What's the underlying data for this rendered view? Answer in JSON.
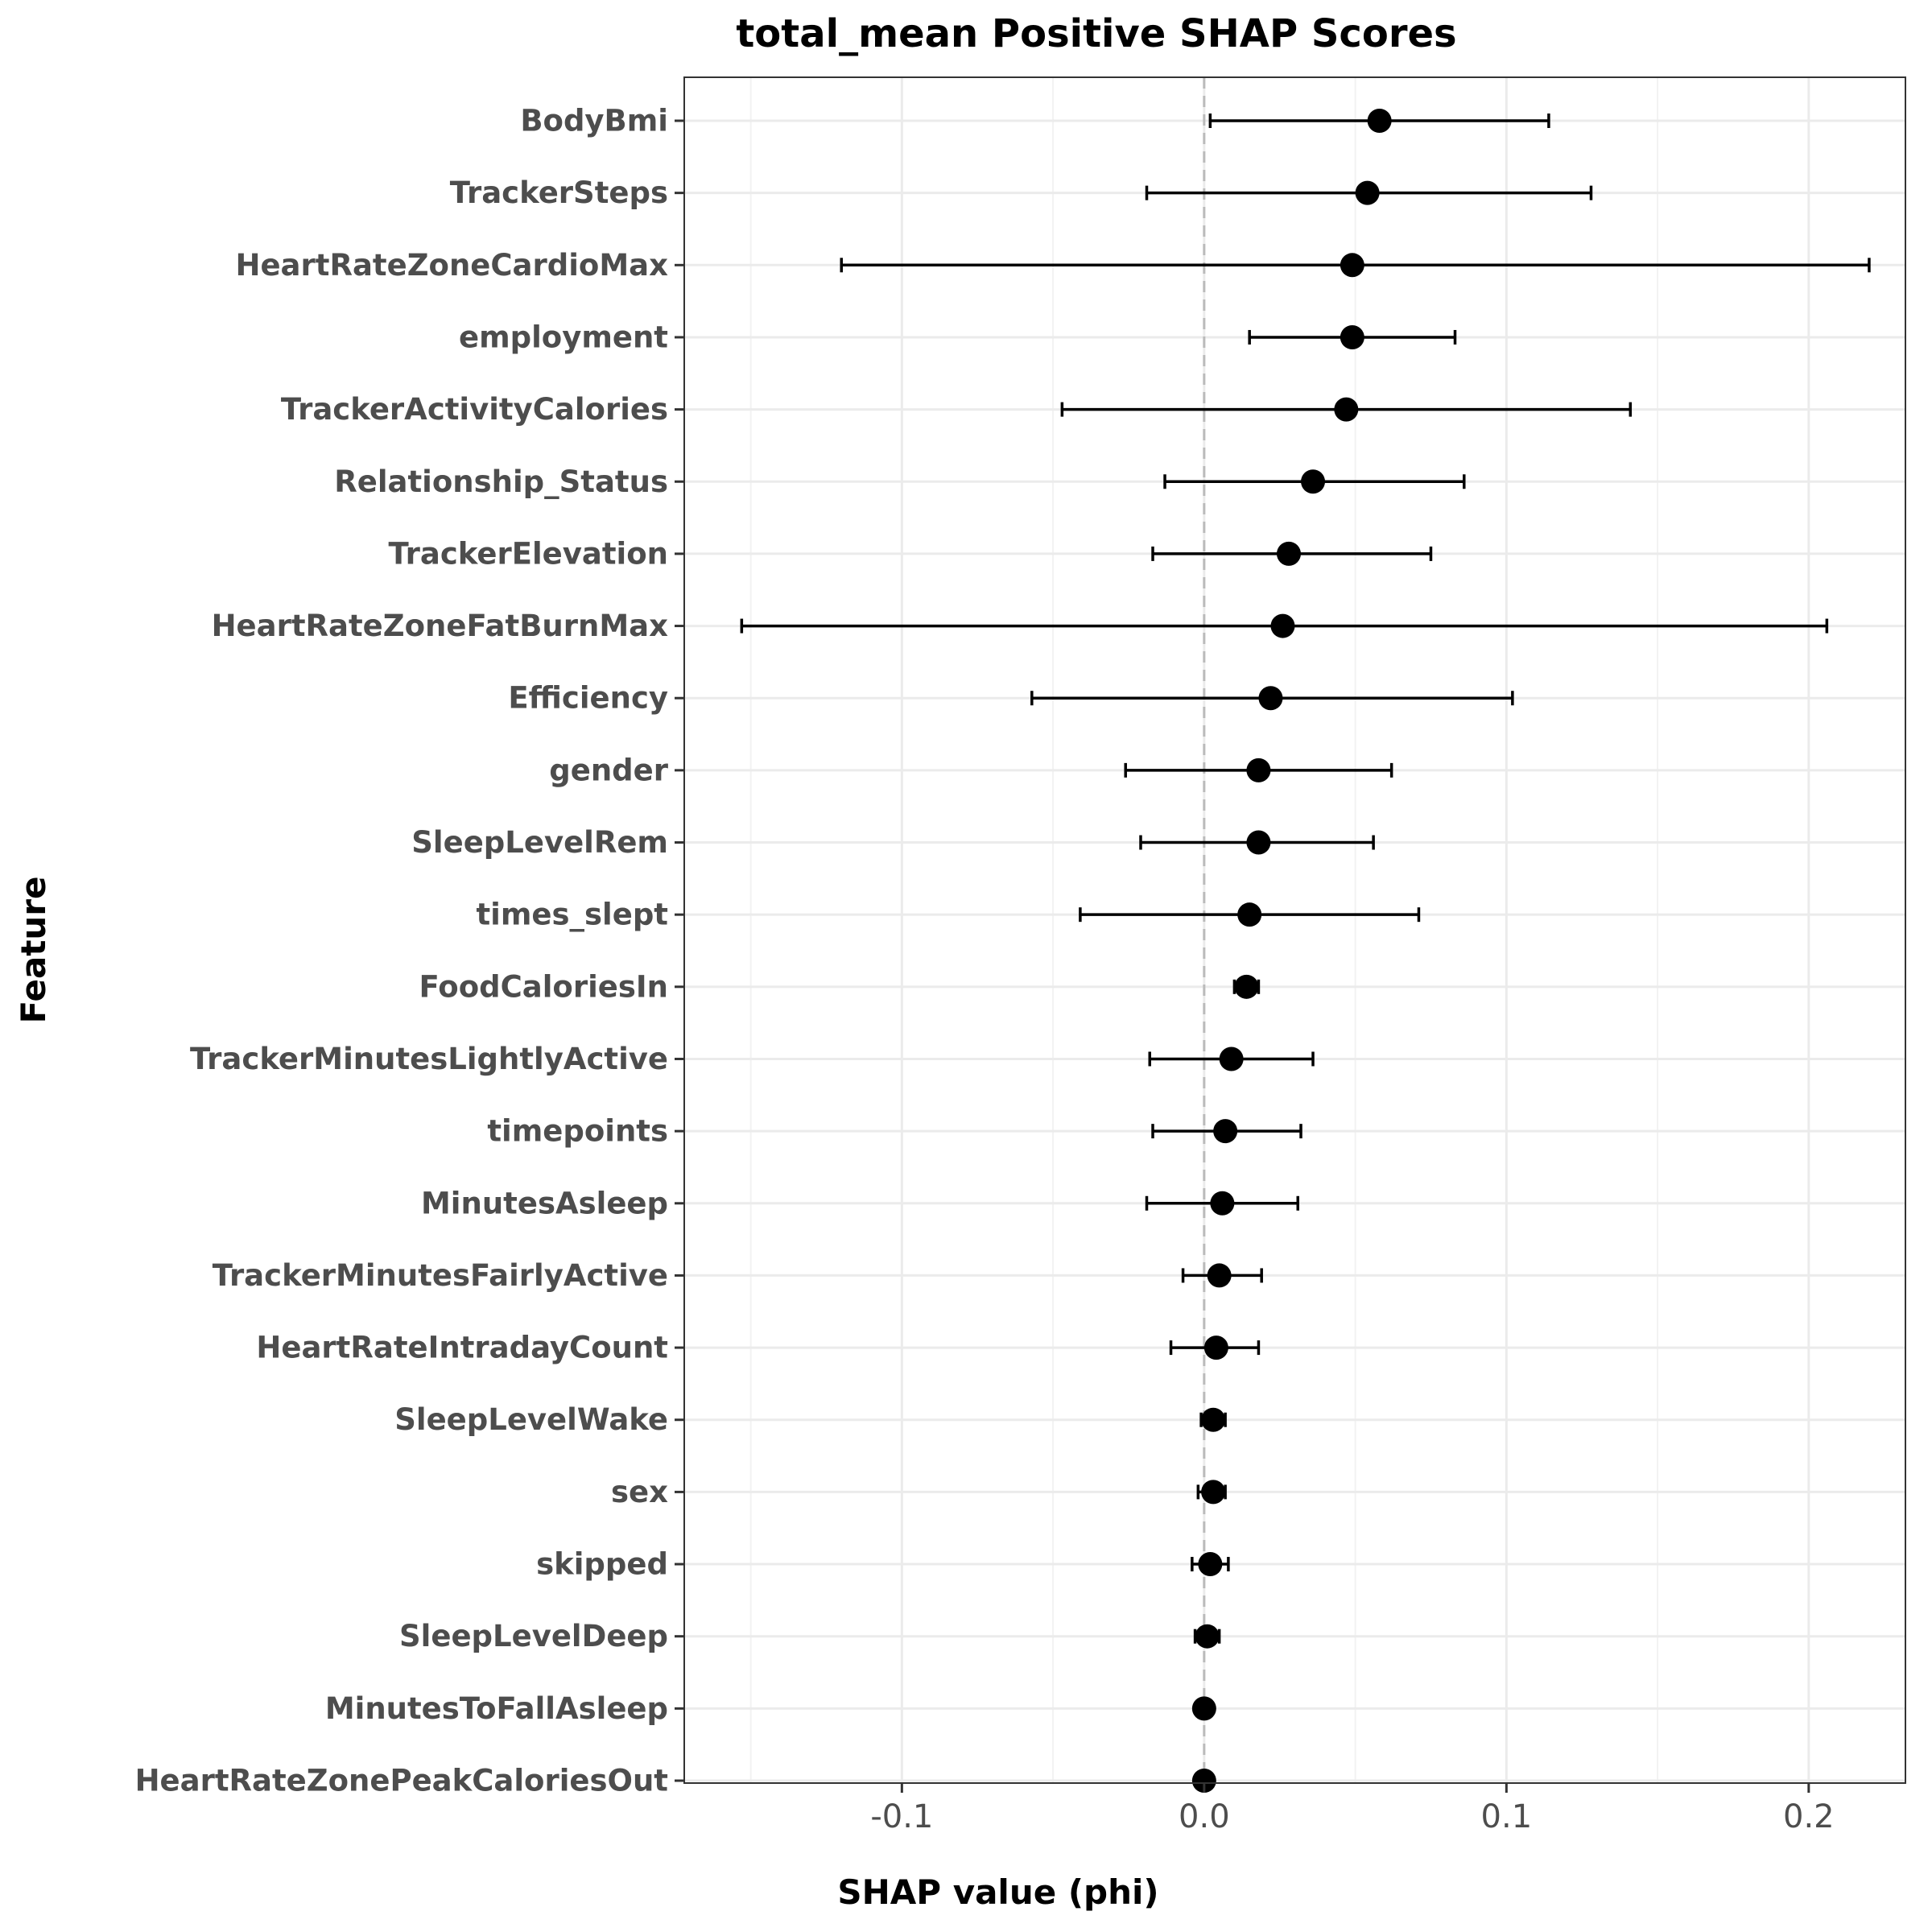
{
  "chart_data": {
    "type": "scatter",
    "subtype": "point-with-error-bars",
    "title": "total_mean Positive SHAP Scores",
    "xlabel": "SHAP value (phi)",
    "ylabel": "Feature",
    "xlim": [
      -0.172,
      0.232
    ],
    "x_ticks": [
      -0.1,
      0.0,
      0.1,
      0.2
    ],
    "x_tick_labels": [
      "-0.1",
      "0.0",
      "0.1",
      "0.2"
    ],
    "reference_line": {
      "x": 0,
      "style": "dashed",
      "color": "#bbbbbb"
    },
    "grid": true,
    "legend": "none",
    "point_color": "#000000",
    "features": [
      {
        "name": "BodyBmi",
        "value": 0.058,
        "lower": 0.002,
        "upper": 0.114
      },
      {
        "name": "TrackerSteps",
        "value": 0.054,
        "lower": -0.019,
        "upper": 0.128
      },
      {
        "name": "HeartRateZoneCardioMax",
        "value": 0.049,
        "lower": -0.12,
        "upper": 0.22
      },
      {
        "name": "employment",
        "value": 0.049,
        "lower": 0.015,
        "upper": 0.083
      },
      {
        "name": "TrackerActivityCalories",
        "value": 0.047,
        "lower": -0.047,
        "upper": 0.141
      },
      {
        "name": "Relationship_Status",
        "value": 0.036,
        "lower": -0.013,
        "upper": 0.086
      },
      {
        "name": "TrackerElevation",
        "value": 0.028,
        "lower": -0.017,
        "upper": 0.075
      },
      {
        "name": "HeartRateZoneFatBurnMax",
        "value": 0.026,
        "lower": -0.153,
        "upper": 0.206
      },
      {
        "name": "Efficiency",
        "value": 0.022,
        "lower": -0.057,
        "upper": 0.102
      },
      {
        "name": "gender",
        "value": 0.018,
        "lower": -0.026,
        "upper": 0.062
      },
      {
        "name": "SleepLevelRem",
        "value": 0.018,
        "lower": -0.021,
        "upper": 0.056
      },
      {
        "name": "times_slept",
        "value": 0.015,
        "lower": -0.041,
        "upper": 0.071
      },
      {
        "name": "FoodCaloriesIn",
        "value": 0.014,
        "lower": 0.01,
        "upper": 0.018
      },
      {
        "name": "TrackerMinutesLightlyActive",
        "value": 0.009,
        "lower": -0.018,
        "upper": 0.036
      },
      {
        "name": "timepoints",
        "value": 0.007,
        "lower": -0.017,
        "upper": 0.032
      },
      {
        "name": "MinutesAsleep",
        "value": 0.006,
        "lower": -0.019,
        "upper": 0.031
      },
      {
        "name": "TrackerMinutesFairlyActive",
        "value": 0.005,
        "lower": -0.007,
        "upper": 0.019
      },
      {
        "name": "HeartRateIntradayCount",
        "value": 0.004,
        "lower": -0.011,
        "upper": 0.018
      },
      {
        "name": "SleepLevelWake",
        "value": 0.003,
        "lower": -0.001,
        "upper": 0.007
      },
      {
        "name": "sex",
        "value": 0.003,
        "lower": -0.002,
        "upper": 0.007
      },
      {
        "name": "skipped",
        "value": 0.002,
        "lower": -0.004,
        "upper": 0.008
      },
      {
        "name": "SleepLevelDeep",
        "value": 0.001,
        "lower": -0.003,
        "upper": 0.005
      },
      {
        "name": "MinutesToFallAsleep",
        "value": 0.0,
        "lower": -0.001,
        "upper": 0.001
      },
      {
        "name": "HeartRateZonePeakCaloriesOut",
        "value": 0.0,
        "lower": 0.0,
        "upper": 0.0
      }
    ]
  }
}
